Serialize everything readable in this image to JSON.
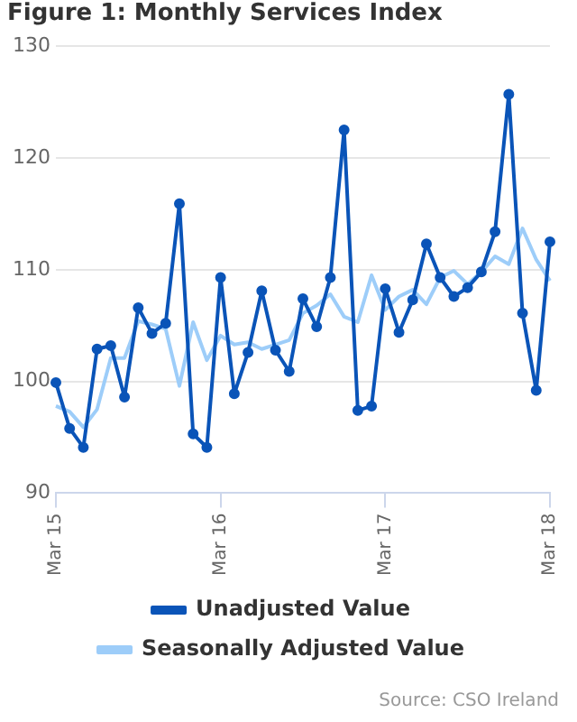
{
  "chart_data": {
    "type": "line",
    "title": "Figure 1: Monthly Services Index",
    "categories": [
      "Mar 15",
      null,
      null,
      null,
      null,
      null,
      null,
      null,
      null,
      null,
      null,
      null,
      "Mar 16",
      null,
      null,
      null,
      null,
      null,
      null,
      null,
      null,
      null,
      null,
      null,
      "Mar 17",
      null,
      null,
      null,
      null,
      null,
      null,
      null,
      null,
      null,
      null,
      null,
      "Mar 18"
    ],
    "series": [
      {
        "name": "Unadjusted Value",
        "color": "#0a54b8",
        "marker": "circle",
        "values": [
          99.9,
          95.8,
          94.1,
          102.9,
          103.2,
          98.6,
          106.6,
          104.3,
          105.2,
          115.9,
          95.3,
          94.1,
          109.3,
          98.9,
          102.6,
          108.1,
          102.8,
          100.9,
          107.4,
          104.9,
          109.3,
          122.5,
          97.4,
          97.8,
          108.3,
          104.4,
          107.3,
          112.3,
          109.3,
          107.6,
          108.4,
          109.8,
          113.4,
          125.7,
          106.1,
          99.2,
          112.5
        ]
      },
      {
        "name": "Seasonally Adjusted Value",
        "color": "#9dcdf9",
        "marker": "none",
        "values": [
          97.8,
          97.3,
          95.9,
          97.5,
          102.1,
          102.1,
          105.4,
          105.1,
          104.7,
          99.6,
          105.3,
          101.9,
          104.1,
          103.3,
          103.5,
          102.9,
          103.3,
          103.7,
          106.1,
          106.8,
          107.8,
          105.8,
          105.3,
          109.5,
          106.4,
          107.6,
          108.2,
          106.9,
          109.3,
          109.9,
          108.7,
          109.8,
          111.2,
          110.5,
          113.7,
          110.9,
          109.0
        ]
      }
    ],
    "ylim": [
      90,
      130
    ],
    "yticks": [
      90,
      100,
      110,
      120,
      130
    ],
    "grid": "y",
    "legend": "bottom",
    "annotations": [
      "Source: CSO Ireland"
    ]
  }
}
